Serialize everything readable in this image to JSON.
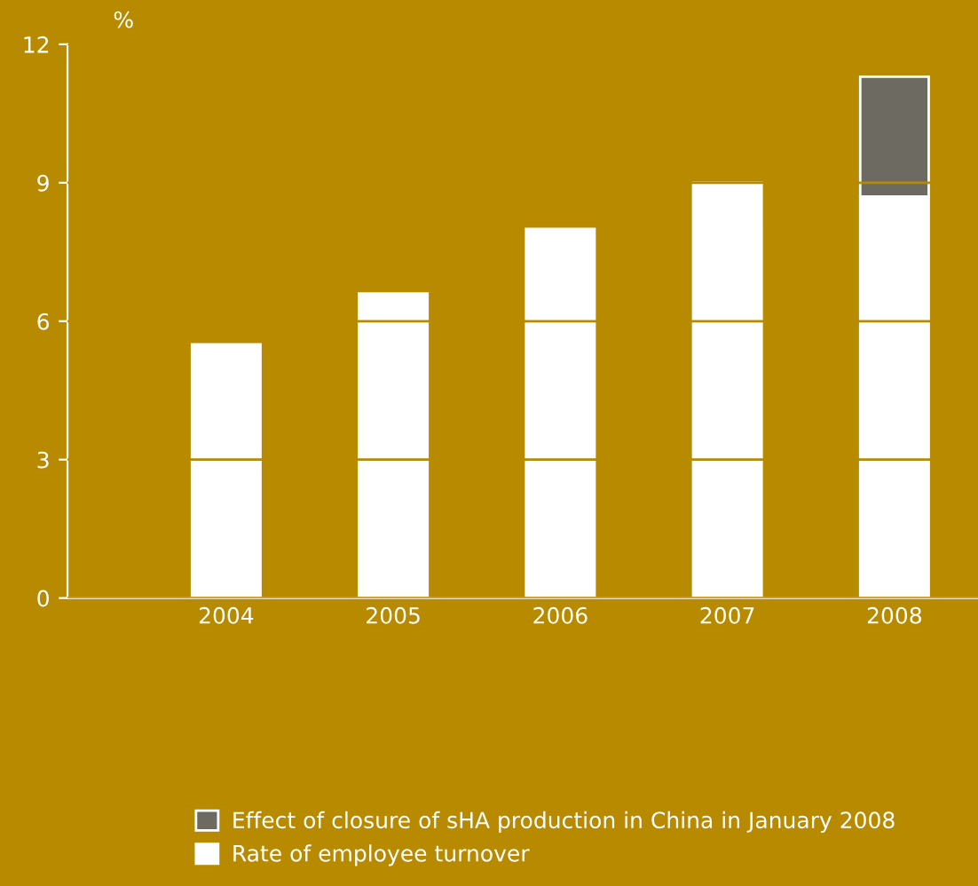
{
  "chart_data": {
    "type": "bar",
    "stacked": true,
    "ylabel": "%",
    "categories": [
      "2004",
      "2005",
      "2006",
      "2007",
      "2008"
    ],
    "series": [
      {
        "name": "Rate of employee turnover",
        "color": "#ffffff",
        "values": [
          5.5,
          6.6,
          8.0,
          9.0,
          8.7
        ]
      },
      {
        "name": "Effect of closure of sHA production in China in January 2008",
        "color": "#6d6a62",
        "values": [
          null,
          null,
          null,
          null,
          2.6
        ]
      }
    ],
    "ylim": [
      0,
      12
    ],
    "yticks": [
      0,
      3,
      6,
      9,
      12
    ],
    "grid": "y",
    "legend": "bottom left"
  }
}
